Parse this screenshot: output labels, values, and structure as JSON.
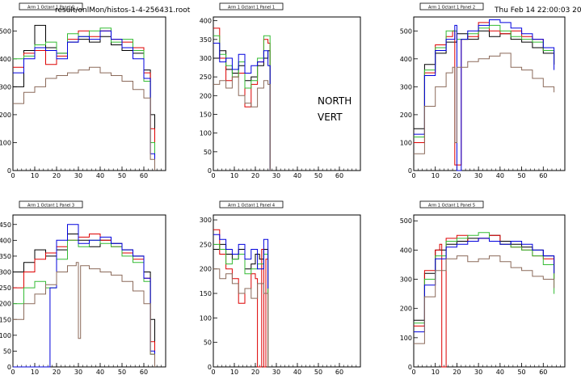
{
  "header": {
    "file": "result/onlMon/histos-1-4-256431.root",
    "timestamp": "Thu Feb 14 22:00:03 2008"
  },
  "overlay": {
    "line1": "NORTH",
    "line2": "VERT"
  },
  "colors": {
    "black": "#000000",
    "red": "#dd0000",
    "green": "#33bb33",
    "blue": "#0000dd",
    "brown": "#8b6a5a"
  },
  "chart_data": [
    {
      "type": "line",
      "title": "Arm 1 Octant 1 Panel 0",
      "xlim": [
        0,
        70
      ],
      "ylim": [
        0,
        550
      ],
      "xticks": [
        0,
        10,
        20,
        30,
        40,
        50,
        60
      ],
      "yticks": [
        0,
        100,
        200,
        300,
        400,
        500
      ],
      "series": [
        {
          "color": "black",
          "x": [
            0,
            5,
            10,
            15,
            20,
            25,
            30,
            35,
            40,
            45,
            50,
            55,
            60,
            63,
            65
          ],
          "y": [
            300,
            430,
            520,
            440,
            420,
            460,
            470,
            460,
            480,
            450,
            430,
            420,
            360,
            200,
            0
          ]
        },
        {
          "color": "red",
          "x": [
            0,
            5,
            10,
            15,
            20,
            25,
            30,
            35,
            40,
            45,
            50,
            55,
            60,
            63,
            65
          ],
          "y": [
            370,
            420,
            430,
            380,
            410,
            470,
            500,
            480,
            500,
            470,
            460,
            440,
            350,
            150,
            0
          ]
        },
        {
          "color": "green",
          "x": [
            0,
            5,
            10,
            15,
            20,
            25,
            30,
            35,
            40,
            45,
            50,
            55,
            60,
            63,
            65
          ],
          "y": [
            400,
            410,
            450,
            460,
            420,
            490,
            480,
            500,
            510,
            460,
            470,
            430,
            320,
            100,
            0
          ]
        },
        {
          "color": "blue",
          "x": [
            0,
            5,
            10,
            15,
            20,
            25,
            30,
            35,
            40,
            45,
            50,
            55,
            60,
            63,
            65
          ],
          "y": [
            350,
            400,
            440,
            430,
            400,
            460,
            480,
            470,
            500,
            470,
            440,
            400,
            330,
            60,
            0
          ]
        },
        {
          "color": "brown",
          "x": [
            0,
            5,
            10,
            15,
            20,
            25,
            30,
            35,
            40,
            45,
            50,
            55,
            60,
            63,
            65
          ],
          "y": [
            240,
            280,
            300,
            330,
            340,
            350,
            360,
            370,
            350,
            340,
            320,
            290,
            260,
            40,
            0
          ]
        }
      ]
    },
    {
      "type": "line",
      "title": "Arm 1 Octant 1 Panel 1",
      "xlim": [
        0,
        70
      ],
      "ylim": [
        0,
        410
      ],
      "xticks": [
        0,
        10,
        20,
        30,
        40,
        50,
        60
      ],
      "yticks": [
        0,
        50,
        100,
        150,
        200,
        250,
        300,
        350,
        400
      ],
      "series": [
        {
          "color": "black",
          "x": [
            0,
            3,
            6,
            9,
            12,
            15,
            18,
            21,
            24,
            26,
            27
          ],
          "y": [
            300,
            320,
            270,
            260,
            280,
            240,
            250,
            280,
            300,
            320,
            0
          ]
        },
        {
          "color": "red",
          "x": [
            0,
            3,
            6,
            9,
            12,
            15,
            18,
            21,
            24,
            26,
            27
          ],
          "y": [
            380,
            300,
            240,
            250,
            260,
            170,
            230,
            290,
            350,
            340,
            0
          ]
        },
        {
          "color": "green",
          "x": [
            0,
            3,
            6,
            9,
            12,
            15,
            18,
            21,
            24,
            26,
            27
          ],
          "y": [
            360,
            310,
            280,
            250,
            290,
            220,
            240,
            300,
            360,
            360,
            0
          ]
        },
        {
          "color": "blue",
          "x": [
            0,
            3,
            6,
            9,
            12,
            15,
            18,
            21,
            24,
            26,
            27
          ],
          "y": [
            340,
            290,
            300,
            270,
            310,
            260,
            280,
            290,
            320,
            280,
            0
          ]
        },
        {
          "color": "brown",
          "x": [
            0,
            3,
            6,
            9,
            12,
            15,
            18,
            21,
            24,
            26,
            27
          ],
          "y": [
            230,
            240,
            220,
            250,
            200,
            180,
            170,
            220,
            240,
            230,
            0
          ]
        }
      ]
    },
    {
      "type": "line",
      "title": "Arm 1 Octant 1 Panel 2",
      "xlim": [
        0,
        70
      ],
      "ylim": [
        0,
        550
      ],
      "xticks": [
        0,
        10,
        20,
        30,
        40,
        50,
        60
      ],
      "yticks": [
        0,
        100,
        200,
        300,
        400,
        500
      ],
      "series": [
        {
          "color": "black",
          "x": [
            0,
            5,
            10,
            15,
            20,
            25,
            30,
            35,
            40,
            45,
            50,
            55,
            60,
            65
          ],
          "y": [
            150,
            380,
            420,
            460,
            490,
            470,
            500,
            480,
            490,
            470,
            460,
            440,
            420,
            380
          ]
        },
        {
          "color": "red",
          "x": [
            0,
            5,
            10,
            15,
            18,
            19,
            21,
            22,
            25,
            30,
            35,
            40,
            45,
            50,
            55,
            60,
            65
          ],
          "y": [
            100,
            350,
            450,
            480,
            500,
            20,
            20,
            470,
            480,
            530,
            500,
            490,
            500,
            480,
            470,
            430,
            380
          ]
        },
        {
          "color": "green",
          "x": [
            0,
            5,
            10,
            15,
            20,
            25,
            30,
            35,
            40,
            45,
            50,
            55,
            60,
            65
          ],
          "y": [
            120,
            360,
            440,
            500,
            470,
            490,
            510,
            520,
            500,
            480,
            470,
            460,
            430,
            380
          ]
        },
        {
          "color": "blue",
          "x": [
            0,
            5,
            10,
            15,
            19,
            20,
            21,
            22,
            25,
            30,
            35,
            40,
            45,
            50,
            55,
            60,
            65
          ],
          "y": [
            130,
            340,
            430,
            470,
            520,
            0,
            0,
            470,
            500,
            520,
            540,
            530,
            510,
            490,
            470,
            440,
            360
          ]
        },
        {
          "color": "brown",
          "x": [
            0,
            5,
            10,
            15,
            18,
            19,
            20,
            25,
            30,
            35,
            40,
            45,
            50,
            55,
            60,
            65
          ],
          "y": [
            60,
            230,
            300,
            350,
            370,
            100,
            370,
            390,
            400,
            410,
            420,
            370,
            360,
            330,
            300,
            280
          ]
        }
      ]
    },
    {
      "type": "line",
      "title": "Arm 1 Octant 1 Panel 3",
      "xlim": [
        0,
        70
      ],
      "ylim": [
        0,
        480
      ],
      "xticks": [
        0,
        10,
        20,
        30,
        40,
        50,
        60
      ],
      "yticks": [
        0,
        50,
        100,
        150,
        200,
        250,
        300,
        350,
        400,
        450
      ],
      "series": [
        {
          "color": "black",
          "x": [
            0,
            5,
            10,
            15,
            20,
            25,
            30,
            35,
            40,
            45,
            50,
            55,
            60,
            63,
            65
          ],
          "y": [
            300,
            330,
            370,
            350,
            370,
            420,
            400,
            380,
            400,
            390,
            370,
            350,
            300,
            150,
            0
          ]
        },
        {
          "color": "red",
          "x": [
            0,
            5,
            10,
            15,
            20,
            25,
            30,
            35,
            40,
            45,
            50,
            55,
            60,
            63,
            65
          ],
          "y": [
            250,
            300,
            340,
            360,
            380,
            400,
            410,
            420,
            400,
            380,
            360,
            340,
            280,
            80,
            0
          ]
        },
        {
          "color": "green",
          "x": [
            0,
            5,
            10,
            15,
            20,
            25,
            30,
            35,
            40,
            45,
            50,
            55,
            60,
            63,
            65
          ],
          "y": [
            200,
            250,
            270,
            250,
            340,
            400,
            380,
            400,
            390,
            380,
            350,
            330,
            270,
            40,
            0
          ]
        },
        {
          "color": "blue",
          "x": [
            0,
            5,
            10,
            15,
            16,
            17,
            20,
            25,
            30,
            35,
            40,
            45,
            50,
            55,
            60,
            63,
            65
          ],
          "y": [
            0,
            0,
            0,
            0,
            0,
            250,
            400,
            450,
            390,
            400,
            410,
            390,
            370,
            350,
            280,
            50,
            0
          ]
        },
        {
          "color": "brown",
          "x": [
            0,
            5,
            10,
            15,
            20,
            25,
            29,
            30,
            31,
            35,
            40,
            45,
            50,
            55,
            60,
            63,
            65
          ],
          "y": [
            150,
            200,
            230,
            260,
            300,
            320,
            330,
            90,
            320,
            310,
            300,
            290,
            270,
            240,
            200,
            40,
            0
          ]
        }
      ]
    },
    {
      "type": "line",
      "title": "Arm 1 Octant 1 Panel 4",
      "xlim": [
        0,
        70
      ],
      "ylim": [
        0,
        310
      ],
      "xticks": [
        0,
        10,
        20,
        30,
        40,
        50,
        60
      ],
      "yticks": [
        0,
        50,
        100,
        150,
        200,
        250,
        300
      ],
      "series": [
        {
          "color": "black",
          "x": [
            0,
            3,
            6,
            9,
            12,
            15,
            18,
            20,
            22,
            24,
            26
          ],
          "y": [
            240,
            250,
            230,
            220,
            240,
            200,
            210,
            230,
            220,
            240,
            0
          ]
        },
        {
          "color": "red",
          "x": [
            0,
            3,
            6,
            9,
            12,
            15,
            18,
            20,
            21,
            22,
            23,
            24,
            25,
            26
          ],
          "y": [
            280,
            230,
            200,
            180,
            130,
            160,
            190,
            180,
            0,
            0,
            240,
            0,
            220,
            0
          ]
        },
        {
          "color": "green",
          "x": [
            0,
            3,
            6,
            9,
            12,
            15,
            18,
            21,
            24,
            26
          ],
          "y": [
            250,
            240,
            210,
            220,
            230,
            190,
            200,
            210,
            230,
            0
          ]
        },
        {
          "color": "blue",
          "x": [
            0,
            3,
            6,
            9,
            12,
            15,
            18,
            21,
            24,
            26
          ],
          "y": [
            270,
            260,
            240,
            230,
            250,
            220,
            240,
            200,
            260,
            160
          ]
        },
        {
          "color": "brown",
          "x": [
            0,
            3,
            6,
            9,
            12,
            15,
            18,
            21,
            24,
            26
          ],
          "y": [
            200,
            180,
            190,
            170,
            150,
            160,
            140,
            170,
            150,
            0
          ]
        }
      ]
    },
    {
      "type": "line",
      "title": "Arm 1 Octant 1 Panel 5",
      "xlim": [
        0,
        70
      ],
      "ylim": [
        0,
        520
      ],
      "xticks": [
        0,
        10,
        20,
        30,
        40,
        50,
        60
      ],
      "yticks": [
        0,
        100,
        200,
        300,
        400,
        500
      ],
      "series": [
        {
          "color": "black",
          "x": [
            0,
            5,
            10,
            15,
            20,
            25,
            30,
            35,
            40,
            45,
            50,
            55,
            60,
            65
          ],
          "y": [
            160,
            320,
            400,
            420,
            430,
            440,
            440,
            450,
            430,
            420,
            410,
            400,
            380,
            300
          ]
        },
        {
          "color": "red",
          "x": [
            0,
            5,
            10,
            12,
            13,
            14,
            15,
            20,
            25,
            30,
            35,
            40,
            45,
            50,
            55,
            60,
            65
          ],
          "y": [
            140,
            330,
            400,
            420,
            0,
            0,
            440,
            450,
            430,
            440,
            450,
            420,
            410,
            400,
            380,
            370,
            300
          ]
        },
        {
          "color": "green",
          "x": [
            0,
            5,
            10,
            15,
            20,
            25,
            30,
            35,
            40,
            45,
            50,
            55,
            60,
            65
          ],
          "y": [
            150,
            300,
            380,
            430,
            440,
            450,
            460,
            430,
            420,
            410,
            400,
            380,
            350,
            250
          ]
        },
        {
          "color": "blue",
          "x": [
            0,
            5,
            10,
            15,
            20,
            25,
            30,
            35,
            40,
            45,
            50,
            55,
            60,
            65
          ],
          "y": [
            120,
            280,
            370,
            410,
            420,
            430,
            440,
            430,
            420,
            430,
            420,
            400,
            380,
            320
          ]
        },
        {
          "color": "brown",
          "x": [
            0,
            5,
            10,
            15,
            20,
            25,
            30,
            35,
            40,
            45,
            50,
            55,
            60,
            65
          ],
          "y": [
            80,
            240,
            330,
            370,
            380,
            360,
            370,
            380,
            360,
            340,
            330,
            310,
            300,
            270
          ]
        }
      ]
    }
  ]
}
